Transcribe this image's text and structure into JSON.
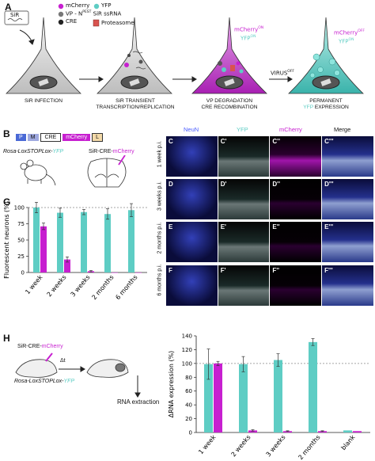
{
  "panels": {
    "a": {
      "label": "A",
      "siR_box": "SiR",
      "legend": {
        "mcherry": "mCherry",
        "yfp": "YFP",
        "vp_pest": "VP - N",
        "vp_pest_sup": "PEST",
        "sir_ssrna": "SiR ssRNA",
        "cre": "CRE",
        "proteasome": "Proteasome"
      },
      "stages": [
        {
          "title1": "SiR INFECTION",
          "title2": ""
        },
        {
          "title1": "SiR TRANSIENT",
          "title2": "TRANSCRIPTION/REPLICATION"
        },
        {
          "title1": "VP DEGRADATION",
          "title2": "CRE RECOMBINATION"
        },
        {
          "title1": "PERMANENT",
          "title2": "EXPRESSION",
          "title2_prefix": "YFP"
        }
      ],
      "cell3_labels": {
        "mcherry": "mCherry",
        "mcherry_sup": "ON",
        "yfp": "YFP",
        "yfp_sup": "ON"
      },
      "cell4_labels": {
        "mcherry": "mCherry",
        "mcherry_sup": "OFF",
        "yfp": "YFP",
        "yfp_sup": "ON"
      },
      "virus_off": "VIRUS",
      "virus_off_sup": "OFF"
    },
    "b": {
      "label": "B",
      "construct": [
        "P",
        "M",
        "CRE",
        "mCherry",
        "L"
      ],
      "mouse_label": "Rosa-LoxSTOPLox-",
      "mouse_label_color": "YFP",
      "brain_label": "SiR-CRE-",
      "brain_label_color": "mCherry"
    },
    "c": {
      "column_headers": [
        "NeuN",
        "YFP",
        "mCherry",
        "Merge"
      ],
      "rows": [
        {
          "time": "1 week p.i.",
          "labels": [
            "C",
            "C'",
            "C''",
            "C'''"
          ]
        },
        {
          "time": "3 weeks p.i.",
          "labels": [
            "D",
            "D'",
            "D''",
            "D'''"
          ]
        },
        {
          "time": "2 months p.i.",
          "labels": [
            "E",
            "E'",
            "E''",
            "E'''"
          ]
        },
        {
          "time": "6 months p.i.",
          "labels": [
            "F",
            "F'",
            "F''",
            "F'''"
          ]
        }
      ]
    },
    "g": {
      "label": "G"
    },
    "h": {
      "label": "H",
      "brain_label": "SiR-CRE-",
      "brain_label_color": "mCherry",
      "delta_t": "Δt",
      "mouse_label": "Rosa-LoxSTOPLox-",
      "mouse_label_color": "YFP",
      "rna_extraction": "RNA extraction"
    }
  },
  "colors": {
    "cyan": "#5ecdc4",
    "magenta": "#c71fd0",
    "construct_p": "#4a69d6",
    "construct_m": "#9fa9e0"
  },
  "chart_data": [
    {
      "id": "G",
      "type": "bar",
      "ylabel": "Fluorescent neurons (%)",
      "categories": [
        "1 week",
        "2 weeks",
        "3 weeks",
        "2 months",
        "6 months"
      ],
      "ylim": [
        0,
        100
      ],
      "yticks": [
        0,
        25,
        50,
        75,
        100
      ],
      "reference_line": 100,
      "series": [
        {
          "color": "#5ecdc4",
          "values": [
            100,
            92,
            93,
            90,
            96
          ],
          "errors": [
            8,
            7,
            4,
            8,
            10
          ]
        },
        {
          "color": "#c71fd0",
          "values": [
            71,
            20,
            2,
            0,
            0
          ],
          "errors": [
            5,
            4,
            1,
            0,
            0
          ]
        }
      ]
    },
    {
      "id": "H",
      "type": "bar",
      "ylabel": "ΔRNA expression (%)",
      "categories": [
        "1 week",
        "2 weeks",
        "3 weeks",
        "2 months",
        "blank"
      ],
      "ylim": [
        0,
        140
      ],
      "yticks": [
        0,
        20,
        40,
        60,
        80,
        100,
        120,
        140
      ],
      "reference_line": 100,
      "series": [
        {
          "color": "#5ecdc4",
          "values": [
            99,
            99,
            105,
            131,
            3
          ],
          "errors": [
            22,
            11,
            9,
            5,
            0
          ]
        },
        {
          "color": "#c71fd0",
          "values": [
            100,
            3,
            2,
            2,
            2
          ],
          "errors": [
            3,
            1,
            0.5,
            0.5,
            0
          ]
        }
      ]
    }
  ]
}
